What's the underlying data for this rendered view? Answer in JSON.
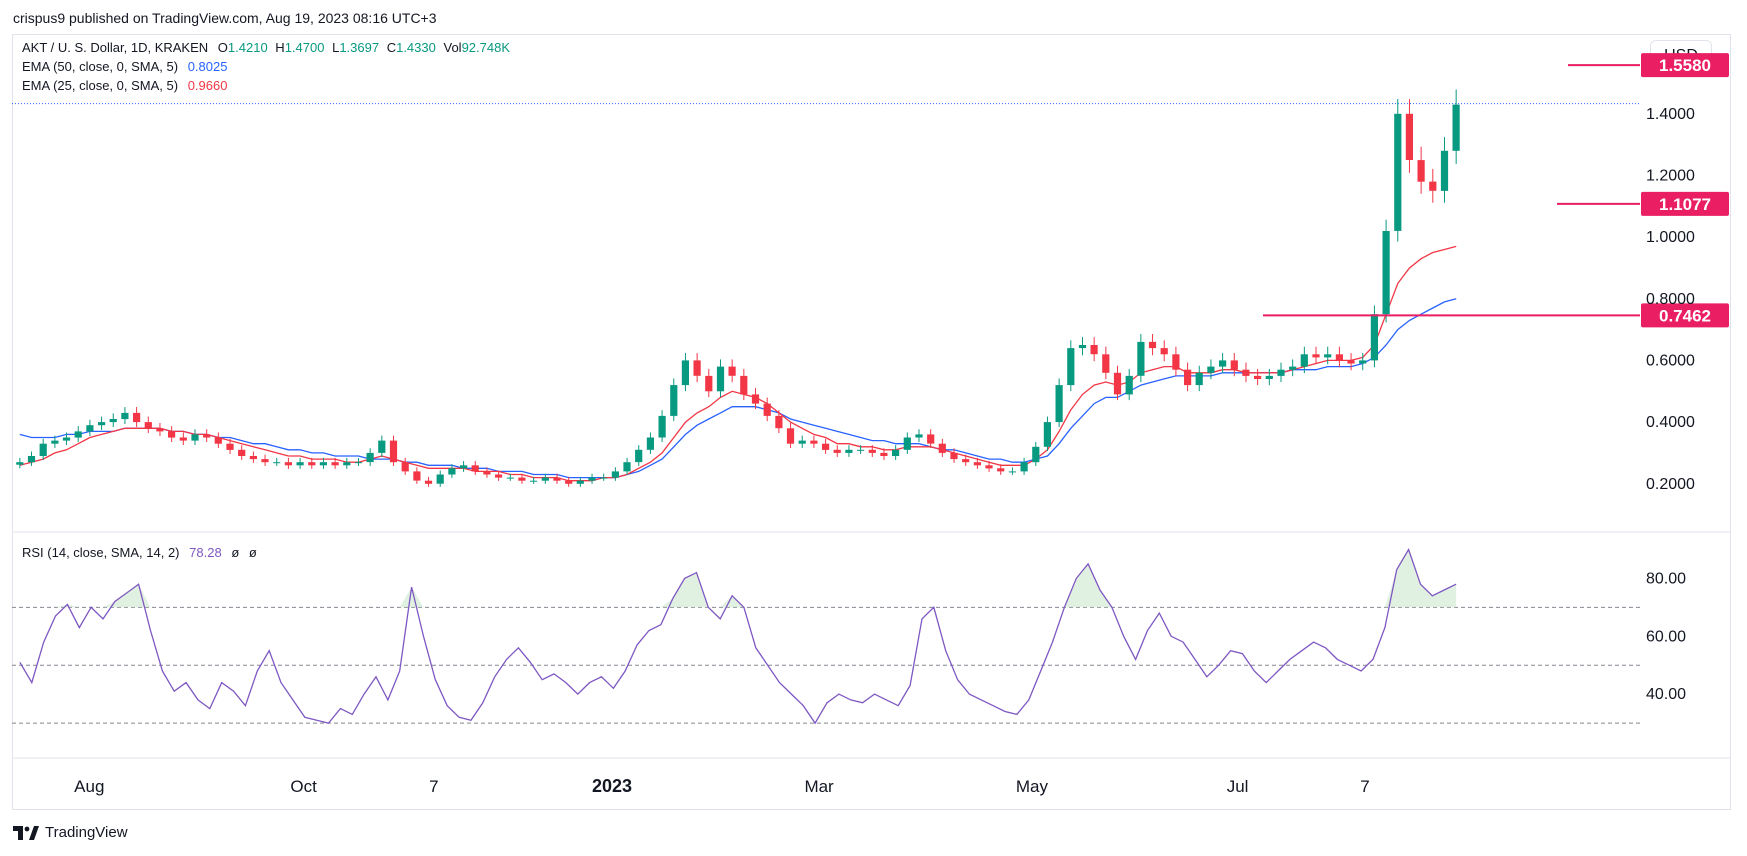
{
  "header": {
    "published": "crispus9 published on TradingView.com, Aug 19, 2023 08:16 UTC+3"
  },
  "legend": {
    "symbol": "AKT / U. S. Dollar, 1D, KRAKEN",
    "o_label": "O",
    "o_value": "1.4210",
    "h_label": "H",
    "h_value": "1.4700",
    "l_label": "L",
    "l_value": "1.3697",
    "c_label": "C",
    "c_value": "1.4330",
    "vol_label": "Vol",
    "vol_value": "92.748K",
    "ema50_label": "EMA (50, close, 0, SMA, 5)",
    "ema50_value": "0.8025",
    "ema25_label": "EMA (25, close, 0, SMA, 5)",
    "ema25_value": "0.9660",
    "rsi_label": "RSI (14, close, SMA, 14, 2)",
    "rsi_value": "78.28",
    "rsi_extra1": "ø",
    "rsi_extra2": "ø"
  },
  "currency_button": "USD",
  "branding": "TradingView",
  "colors": {
    "up": "#089981",
    "down": "#f23645",
    "ema50": "#2962ff",
    "ema25": "#f23645",
    "rsi": "#7e57c2",
    "level": "#e91e63",
    "price_line": "#2962ff"
  },
  "chart_data": {
    "type": "candlestick",
    "x_labels": [
      "Aug",
      "Oct",
      "7",
      "2023",
      "Mar",
      "May",
      "Jul",
      "7"
    ],
    "price_axis": {
      "ticks": [
        "1.4000",
        "1.2000",
        "1.0000",
        "0.8000",
        "0.6000",
        "0.4000",
        "0.2000"
      ],
      "range": [
        0.05,
        1.62
      ]
    },
    "levels": [
      {
        "label": "1.5580",
        "value": 1.558
      },
      {
        "label": "1.1077",
        "value": 1.1077
      },
      {
        "label": "0.7462",
        "value": 0.7462
      }
    ],
    "last_close": 1.433,
    "close_series": [
      0.27,
      0.29,
      0.33,
      0.34,
      0.35,
      0.37,
      0.39,
      0.4,
      0.41,
      0.43,
      0.4,
      0.38,
      0.37,
      0.35,
      0.34,
      0.36,
      0.35,
      0.33,
      0.31,
      0.29,
      0.28,
      0.27,
      0.27,
      0.26,
      0.27,
      0.26,
      0.27,
      0.26,
      0.27,
      0.27,
      0.3,
      0.34,
      0.27,
      0.24,
      0.21,
      0.2,
      0.23,
      0.25,
      0.26,
      0.24,
      0.23,
      0.22,
      0.22,
      0.21,
      0.21,
      0.22,
      0.21,
      0.2,
      0.21,
      0.22,
      0.22,
      0.24,
      0.27,
      0.31,
      0.35,
      0.42,
      0.52,
      0.6,
      0.55,
      0.5,
      0.58,
      0.55,
      0.49,
      0.46,
      0.42,
      0.38,
      0.33,
      0.34,
      0.33,
      0.31,
      0.3,
      0.31,
      0.31,
      0.3,
      0.29,
      0.31,
      0.35,
      0.36,
      0.33,
      0.3,
      0.28,
      0.27,
      0.26,
      0.25,
      0.24,
      0.24,
      0.27,
      0.32,
      0.4,
      0.52,
      0.64,
      0.65,
      0.62,
      0.56,
      0.49,
      0.55,
      0.66,
      0.64,
      0.62,
      0.57,
      0.52,
      0.56,
      0.58,
      0.6,
      0.57,
      0.55,
      0.54,
      0.55,
      0.57,
      0.58,
      0.62,
      0.61,
      0.62,
      0.6,
      0.59,
      0.6,
      0.75,
      1.02,
      1.4,
      1.25,
      1.18,
      1.15,
      1.28,
      1.43
    ],
    "ema25_series": [
      0.26,
      0.27,
      0.28,
      0.3,
      0.31,
      0.33,
      0.35,
      0.36,
      0.37,
      0.38,
      0.38,
      0.38,
      0.38,
      0.37,
      0.37,
      0.36,
      0.36,
      0.35,
      0.34,
      0.33,
      0.32,
      0.31,
      0.3,
      0.29,
      0.29,
      0.28,
      0.28,
      0.28,
      0.27,
      0.27,
      0.28,
      0.29,
      0.28,
      0.27,
      0.26,
      0.25,
      0.25,
      0.25,
      0.25,
      0.24,
      0.24,
      0.24,
      0.23,
      0.23,
      0.22,
      0.22,
      0.22,
      0.21,
      0.21,
      0.21,
      0.22,
      0.22,
      0.23,
      0.25,
      0.27,
      0.3,
      0.35,
      0.4,
      0.43,
      0.45,
      0.48,
      0.5,
      0.49,
      0.48,
      0.46,
      0.43,
      0.4,
      0.38,
      0.36,
      0.35,
      0.33,
      0.33,
      0.32,
      0.32,
      0.31,
      0.31,
      0.32,
      0.32,
      0.32,
      0.31,
      0.3,
      0.29,
      0.28,
      0.27,
      0.26,
      0.26,
      0.26,
      0.28,
      0.31,
      0.37,
      0.44,
      0.49,
      0.52,
      0.53,
      0.52,
      0.53,
      0.56,
      0.57,
      0.58,
      0.58,
      0.56,
      0.56,
      0.56,
      0.57,
      0.57,
      0.56,
      0.56,
      0.56,
      0.56,
      0.57,
      0.58,
      0.59,
      0.6,
      0.6,
      0.6,
      0.61,
      0.65,
      0.75,
      0.85,
      0.9,
      0.93,
      0.95,
      0.96,
      0.97
    ],
    "ema50_series": [
      0.36,
      0.35,
      0.35,
      0.35,
      0.36,
      0.36,
      0.37,
      0.37,
      0.37,
      0.38,
      0.38,
      0.38,
      0.38,
      0.37,
      0.37,
      0.36,
      0.36,
      0.35,
      0.35,
      0.34,
      0.33,
      0.33,
      0.32,
      0.31,
      0.31,
      0.3,
      0.3,
      0.29,
      0.29,
      0.29,
      0.28,
      0.28,
      0.28,
      0.27,
      0.27,
      0.26,
      0.26,
      0.26,
      0.25,
      0.25,
      0.25,
      0.24,
      0.24,
      0.24,
      0.23,
      0.23,
      0.23,
      0.22,
      0.22,
      0.22,
      0.22,
      0.22,
      0.23,
      0.24,
      0.26,
      0.28,
      0.32,
      0.36,
      0.39,
      0.41,
      0.43,
      0.45,
      0.45,
      0.45,
      0.44,
      0.43,
      0.41,
      0.4,
      0.39,
      0.38,
      0.37,
      0.36,
      0.35,
      0.34,
      0.34,
      0.33,
      0.33,
      0.33,
      0.32,
      0.31,
      0.31,
      0.3,
      0.29,
      0.28,
      0.28,
      0.27,
      0.27,
      0.28,
      0.29,
      0.33,
      0.38,
      0.42,
      0.46,
      0.48,
      0.48,
      0.5,
      0.52,
      0.53,
      0.54,
      0.55,
      0.55,
      0.55,
      0.55,
      0.56,
      0.56,
      0.56,
      0.56,
      0.56,
      0.56,
      0.57,
      0.57,
      0.57,
      0.58,
      0.58,
      0.58,
      0.59,
      0.61,
      0.65,
      0.7,
      0.73,
      0.75,
      0.77,
      0.79,
      0.8
    ],
    "rsi": {
      "ticks": [
        "80.00",
        "60.00",
        "40.00"
      ],
      "range": [
        20,
        95
      ],
      "bands": [
        70,
        50,
        30
      ],
      "values": [
        51,
        44,
        58,
        67,
        71,
        63,
        70,
        66,
        72,
        75,
        78,
        62,
        48,
        41,
        44,
        38,
        35,
        44,
        41,
        36,
        48,
        55,
        44,
        38,
        32,
        31,
        30,
        35,
        33,
        40,
        46,
        38,
        48,
        77,
        60,
        45,
        36,
        32,
        31,
        37,
        46,
        52,
        56,
        51,
        45,
        47,
        44,
        40,
        44,
        46,
        42,
        48,
        57,
        62,
        64,
        73,
        80,
        82,
        70,
        66,
        74,
        70,
        56,
        50,
        44,
        40,
        36,
        30,
        37,
        40,
        38,
        37,
        40,
        38,
        36,
        43,
        66,
        70,
        55,
        45,
        40,
        38,
        36,
        34,
        33,
        38,
        48,
        58,
        70,
        80,
        85,
        76,
        70,
        60,
        52,
        62,
        68,
        60,
        58,
        52,
        46,
        50,
        55,
        54,
        48,
        44,
        48,
        52,
        55,
        58,
        56,
        52,
        50,
        48,
        52,
        63,
        83,
        90,
        78,
        74,
        76,
        78
      ]
    }
  }
}
